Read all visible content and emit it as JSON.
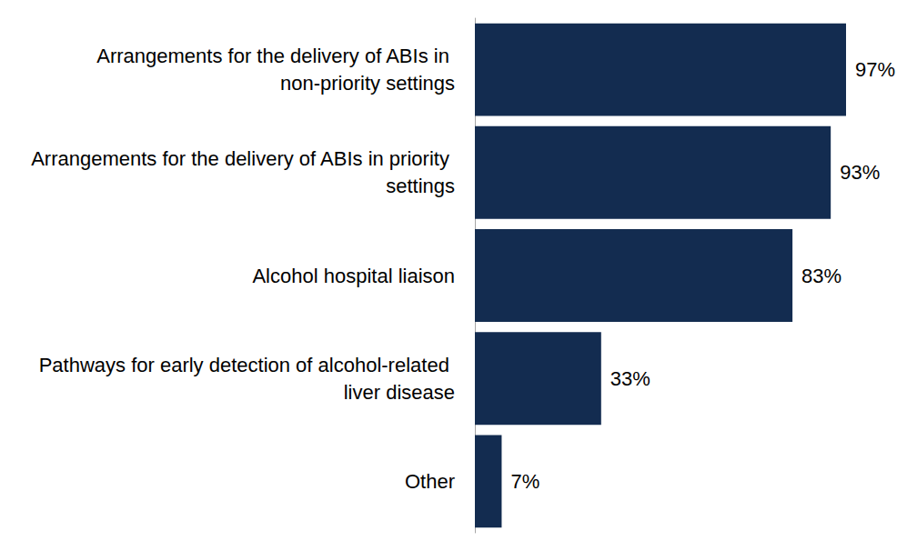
{
  "chart_data": {
    "type": "bar",
    "orientation": "horizontal",
    "categories": [
      "Arrangements for the delivery of ABIs in non-priority settings",
      "Arrangements for the delivery of ABIs in priority settings",
      "Alcohol hospital liaison",
      "Pathways for early detection of alcohol-related liver disease",
      "Other"
    ],
    "values": [
      97,
      93,
      83,
      33,
      7
    ],
    "value_labels": [
      "97%",
      "93%",
      "83%",
      "33%",
      "7%"
    ],
    "color": "#132c50",
    "data_labels": true,
    "tick_labels": "y",
    "grid": false
  }
}
